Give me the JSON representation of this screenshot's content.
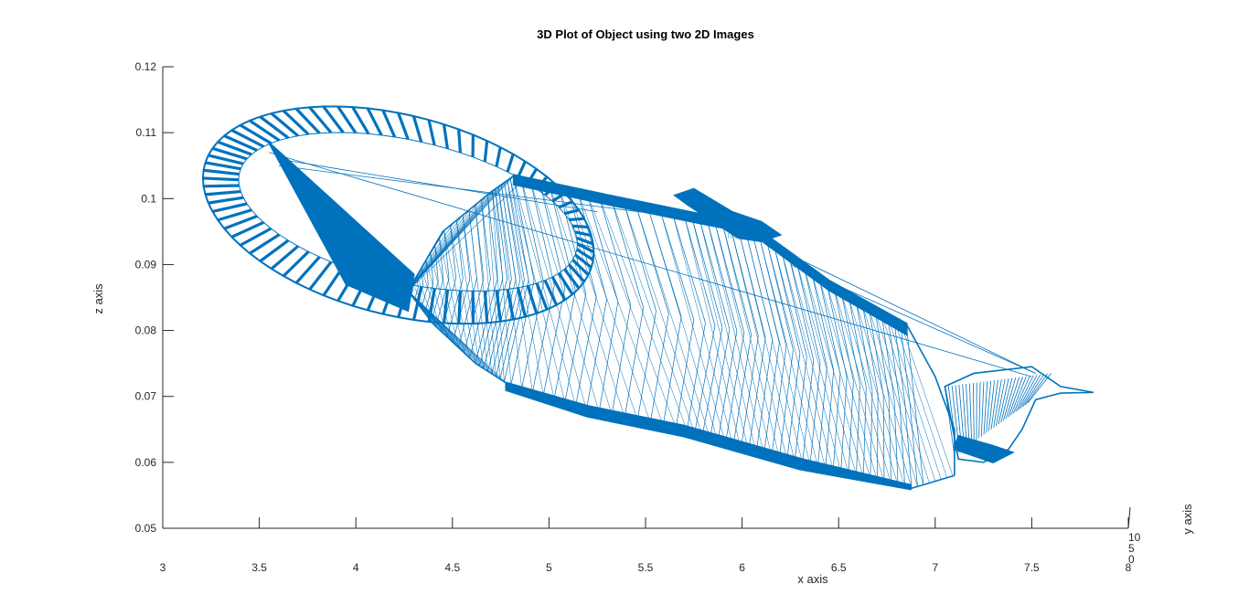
{
  "chart_data": {
    "type": "3d-mesh",
    "title": "3D Plot of Object using two 2D Images",
    "xlabel": "x axis",
    "ylabel": "y axis",
    "zlabel": "z axis",
    "xlim": [
      3,
      8
    ],
    "zlim": [
      0.05,
      0.12
    ],
    "ylim": [
      0,
      10
    ],
    "x_ticks": [
      "3",
      "3.5",
      "4",
      "4.5",
      "5",
      "5.5",
      "6",
      "6.5",
      "7",
      "7.5",
      "8"
    ],
    "z_ticks": [
      "0.05",
      "0.06",
      "0.07",
      "0.08",
      "0.09",
      "0.1",
      "0.11",
      "0.12"
    ],
    "y_ticks": [
      "0",
      "5",
      "10"
    ],
    "series_color": "#0072BD",
    "object": {
      "body": {
        "x_range": [
          4.3,
          7.1
        ],
        "z_range": [
          0.056,
          0.103
        ]
      },
      "handle": {
        "x_range": [
          3.2,
          5.3
        ],
        "z_range": [
          0.083,
          0.113
        ]
      },
      "lid_knob": {
        "x_range": [
          5.65,
          6.2
        ],
        "z_range": [
          0.093,
          0.101
        ]
      },
      "spout": {
        "x_range": [
          7.05,
          7.82
        ],
        "z_range": [
          0.06,
          0.0735
        ]
      }
    },
    "grid": false,
    "legend": "none"
  }
}
